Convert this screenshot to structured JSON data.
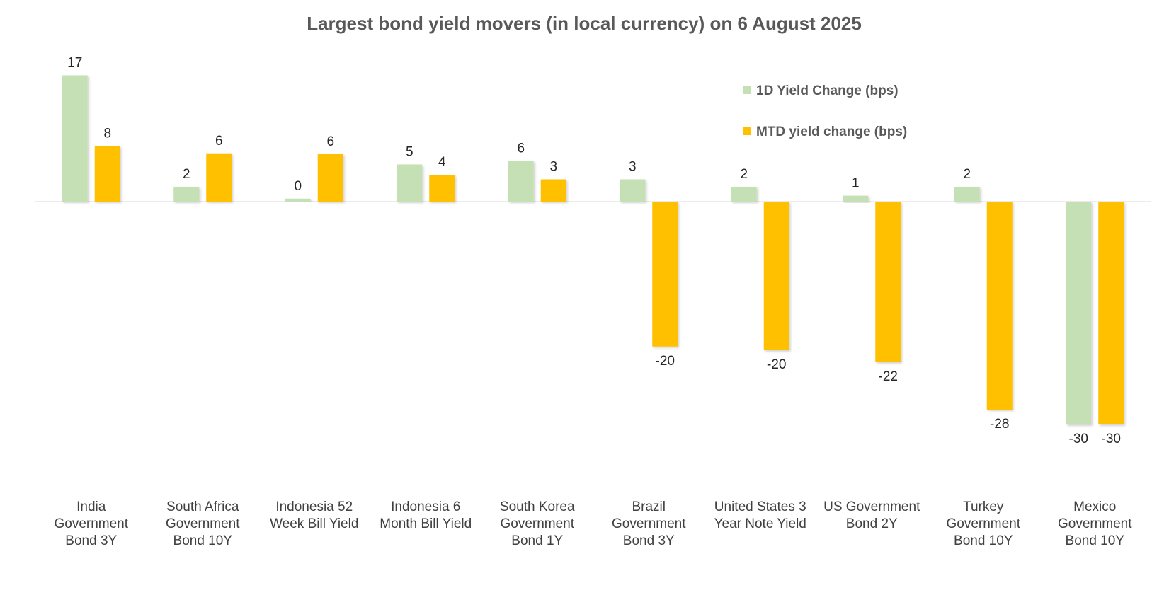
{
  "chart_data": {
    "type": "bar",
    "title": "Largest bond yield movers (in local currency) on 6 August 2025",
    "xlabel": "",
    "ylabel": "",
    "ylim": [
      -30,
      17
    ],
    "grid": false,
    "legend_position": "top-right",
    "categories": [
      [
        "India",
        "Government",
        "Bond 3Y"
      ],
      [
        "South Africa",
        "Government",
        "Bond 10Y"
      ],
      [
        "Indonesia 52",
        "Week Bill Yield"
      ],
      [
        "Indonesia 6",
        "Month Bill Yield"
      ],
      [
        "South Korea",
        "Government",
        "Bond 1Y"
      ],
      [
        "Brazil",
        "Government",
        "Bond 3Y"
      ],
      [
        "United States 3",
        "Year Note Yield"
      ],
      [
        "US Government",
        "Bond 2Y"
      ],
      [
        "Turkey",
        "Government",
        "Bond 10Y"
      ],
      [
        "Mexico",
        "Government",
        "Bond 10Y"
      ]
    ],
    "series": [
      {
        "name": "1D Yield Change (bps)",
        "color": "#c5e0b4",
        "values": [
          17,
          2,
          0.4,
          5,
          5.5,
          3,
          2,
          0.8,
          2,
          -30
        ],
        "labels": [
          "17",
          "2",
          "0",
          "5",
          "6",
          "3",
          "2",
          "1",
          "2",
          "-30"
        ]
      },
      {
        "name": "MTD yield change (bps)",
        "color": "#ffc000",
        "values": [
          7.5,
          6.5,
          6.4,
          3.6,
          3,
          -19.5,
          -20,
          -21.6,
          -28,
          -30
        ],
        "labels": [
          "8",
          "6",
          "6",
          "4",
          "3",
          "-20",
          "-20",
          "-22",
          "-28",
          "-30"
        ]
      }
    ]
  }
}
